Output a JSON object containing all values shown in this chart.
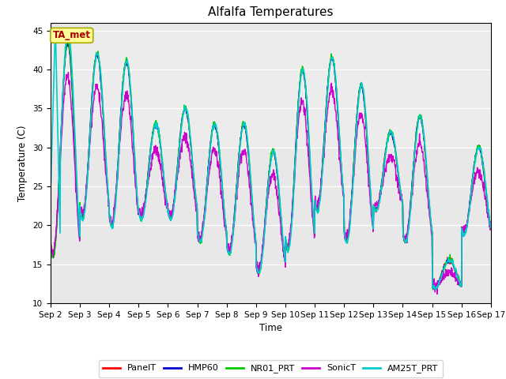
{
  "title": "Alfalfa Temperatures",
  "xlabel": "Time",
  "ylabel": "Temperature (C)",
  "ylim": [
    10,
    46
  ],
  "yticks": [
    10,
    15,
    20,
    25,
    30,
    35,
    40,
    45
  ],
  "series": [
    "PanelT",
    "HMP60",
    "NR01_PRT",
    "SonicT",
    "AM25T_PRT"
  ],
  "colors": [
    "#FF0000",
    "#0000CD",
    "#00CC00",
    "#CC00CC",
    "#00CCCC"
  ],
  "linewidths": [
    1.0,
    1.0,
    1.0,
    1.0,
    1.2
  ],
  "annotation_text": "TA_met",
  "annotation_color": "#AA0000",
  "annotation_bg": "#FFFF99",
  "title_fontsize": 11,
  "tick_fontsize": 7.5,
  "label_fontsize": 8.5,
  "legend_fontsize": 8,
  "n_days": 15,
  "pts_per_day": 96,
  "xtick_labels": [
    "Sep 2",
    "Sep 3",
    "Sep 4",
    "Sep 5",
    "Sep 6",
    "Sep 7",
    "Sep 8",
    "Sep 9",
    "Sep 10",
    "Sep 11",
    "Sep 12",
    "Sep 13",
    "Sep 14",
    "Sep 15",
    "Sep 16",
    "Sep 17"
  ]
}
